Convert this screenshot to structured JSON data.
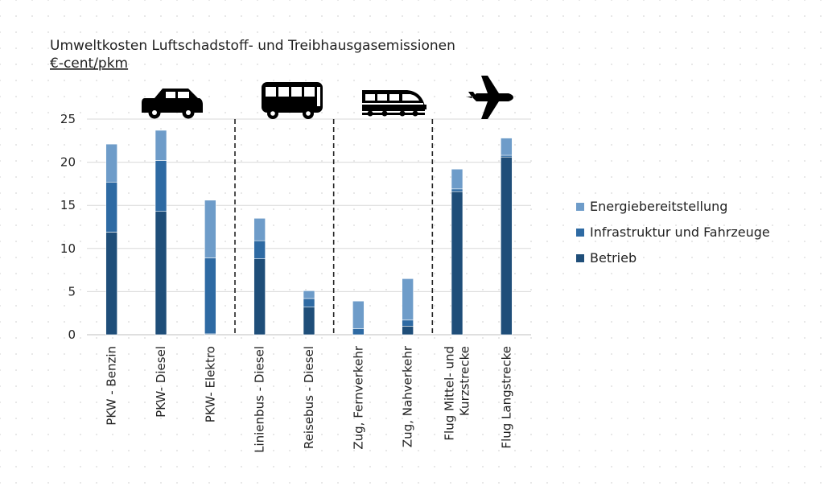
{
  "chart_data": {
    "type": "bar",
    "stacked": true,
    "title": "Umweltkosten Luftschadstoff- und Treibhausgasemissionen",
    "subtitle": "€-cent/pkm",
    "categories": [
      [
        "PKW - Benzin"
      ],
      [
        "PKW- Diesel"
      ],
      [
        "PKW- Elektro"
      ],
      [
        "Linienbus - Diesel"
      ],
      [
        "Reisebus - Diesel"
      ],
      [
        "Zug, Fernverkehr"
      ],
      [
        "Zug, Nahverkehr"
      ],
      [
        "Flug Mittel- und",
        "Kurzstrecke"
      ],
      [
        "Flug Langstrecke"
      ]
    ],
    "series": [
      {
        "name": "Betrieb",
        "color": "#1f4e79",
        "values": [
          11.9,
          14.3,
          0.1,
          8.8,
          3.2,
          0.0,
          1.0,
          16.6,
          20.6
        ]
      },
      {
        "name": "Infrastruktur und Fahrzeuge",
        "color": "#2e6aa3",
        "values": [
          5.8,
          5.9,
          8.8,
          2.1,
          1.0,
          0.7,
          0.7,
          0.3,
          0.2
        ]
      },
      {
        "name": "Energiebereitstellung",
        "color": "#6e9cc9",
        "values": [
          4.4,
          3.5,
          6.7,
          2.6,
          0.9,
          3.2,
          4.8,
          2.3,
          2.0
        ]
      }
    ],
    "yticks": [
      0,
      5,
      10,
      15,
      20,
      25
    ],
    "ylim": [
      0,
      25
    ],
    "grid": true,
    "legend_position": "right",
    "legend_order": [
      "Energiebereitstellung",
      "Infrastruktur und Fahrzeuge",
      "Betrieb"
    ],
    "group_separators_after_index": [
      2,
      4,
      6
    ],
    "group_icons": [
      "car-icon",
      "bus-icon",
      "train-icon",
      "airplane-icon"
    ]
  }
}
